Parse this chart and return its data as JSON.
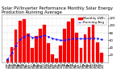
{
  "title": "Solar PV/Inverter Performance Monthly Solar Energy Production Running Average",
  "months": [
    "Jan\n'08",
    "Feb\n'08",
    "Mar\n'08",
    "Apr\n'08",
    "May\n'08",
    "Jun\n'08",
    "Jul\n'08",
    "Aug\n'08",
    "Sep\n'08",
    "Oct\n'08",
    "Nov\n'08",
    "Dec\n'08",
    "Jan\n'09",
    "Feb\n'09",
    "Mar\n'09",
    "Apr\n'09",
    "May\n'09",
    "Jun\n'09",
    "Jul\n'09",
    "Aug\n'09",
    "Sep\n'09",
    "Oct\n'09",
    "Nov\n'09",
    "Dec\n'09"
  ],
  "values": [
    8,
    42,
    88,
    112,
    118,
    78,
    38,
    72,
    92,
    102,
    52,
    22,
    10,
    45,
    90,
    110,
    120,
    80,
    40,
    75,
    95,
    105,
    55,
    25
  ],
  "running_avg": [
    8,
    25,
    46,
    62,
    70,
    74,
    68,
    68,
    70,
    73,
    70,
    65,
    62,
    60,
    60,
    62,
    64,
    65,
    64,
    65,
    65,
    66,
    65,
    62
  ],
  "bar_color": "#ff0000",
  "line_color": "#1a1aff",
  "bg_color": "#ffffff",
  "grid_color": "#d0d0d0",
  "ylim": [
    0,
    130
  ],
  "yticks": [
    20,
    40,
    60,
    80,
    100,
    120
  ],
  "title_fontsize": 3.8,
  "tick_fontsize": 2.8,
  "legend_fontsize": 3.0
}
